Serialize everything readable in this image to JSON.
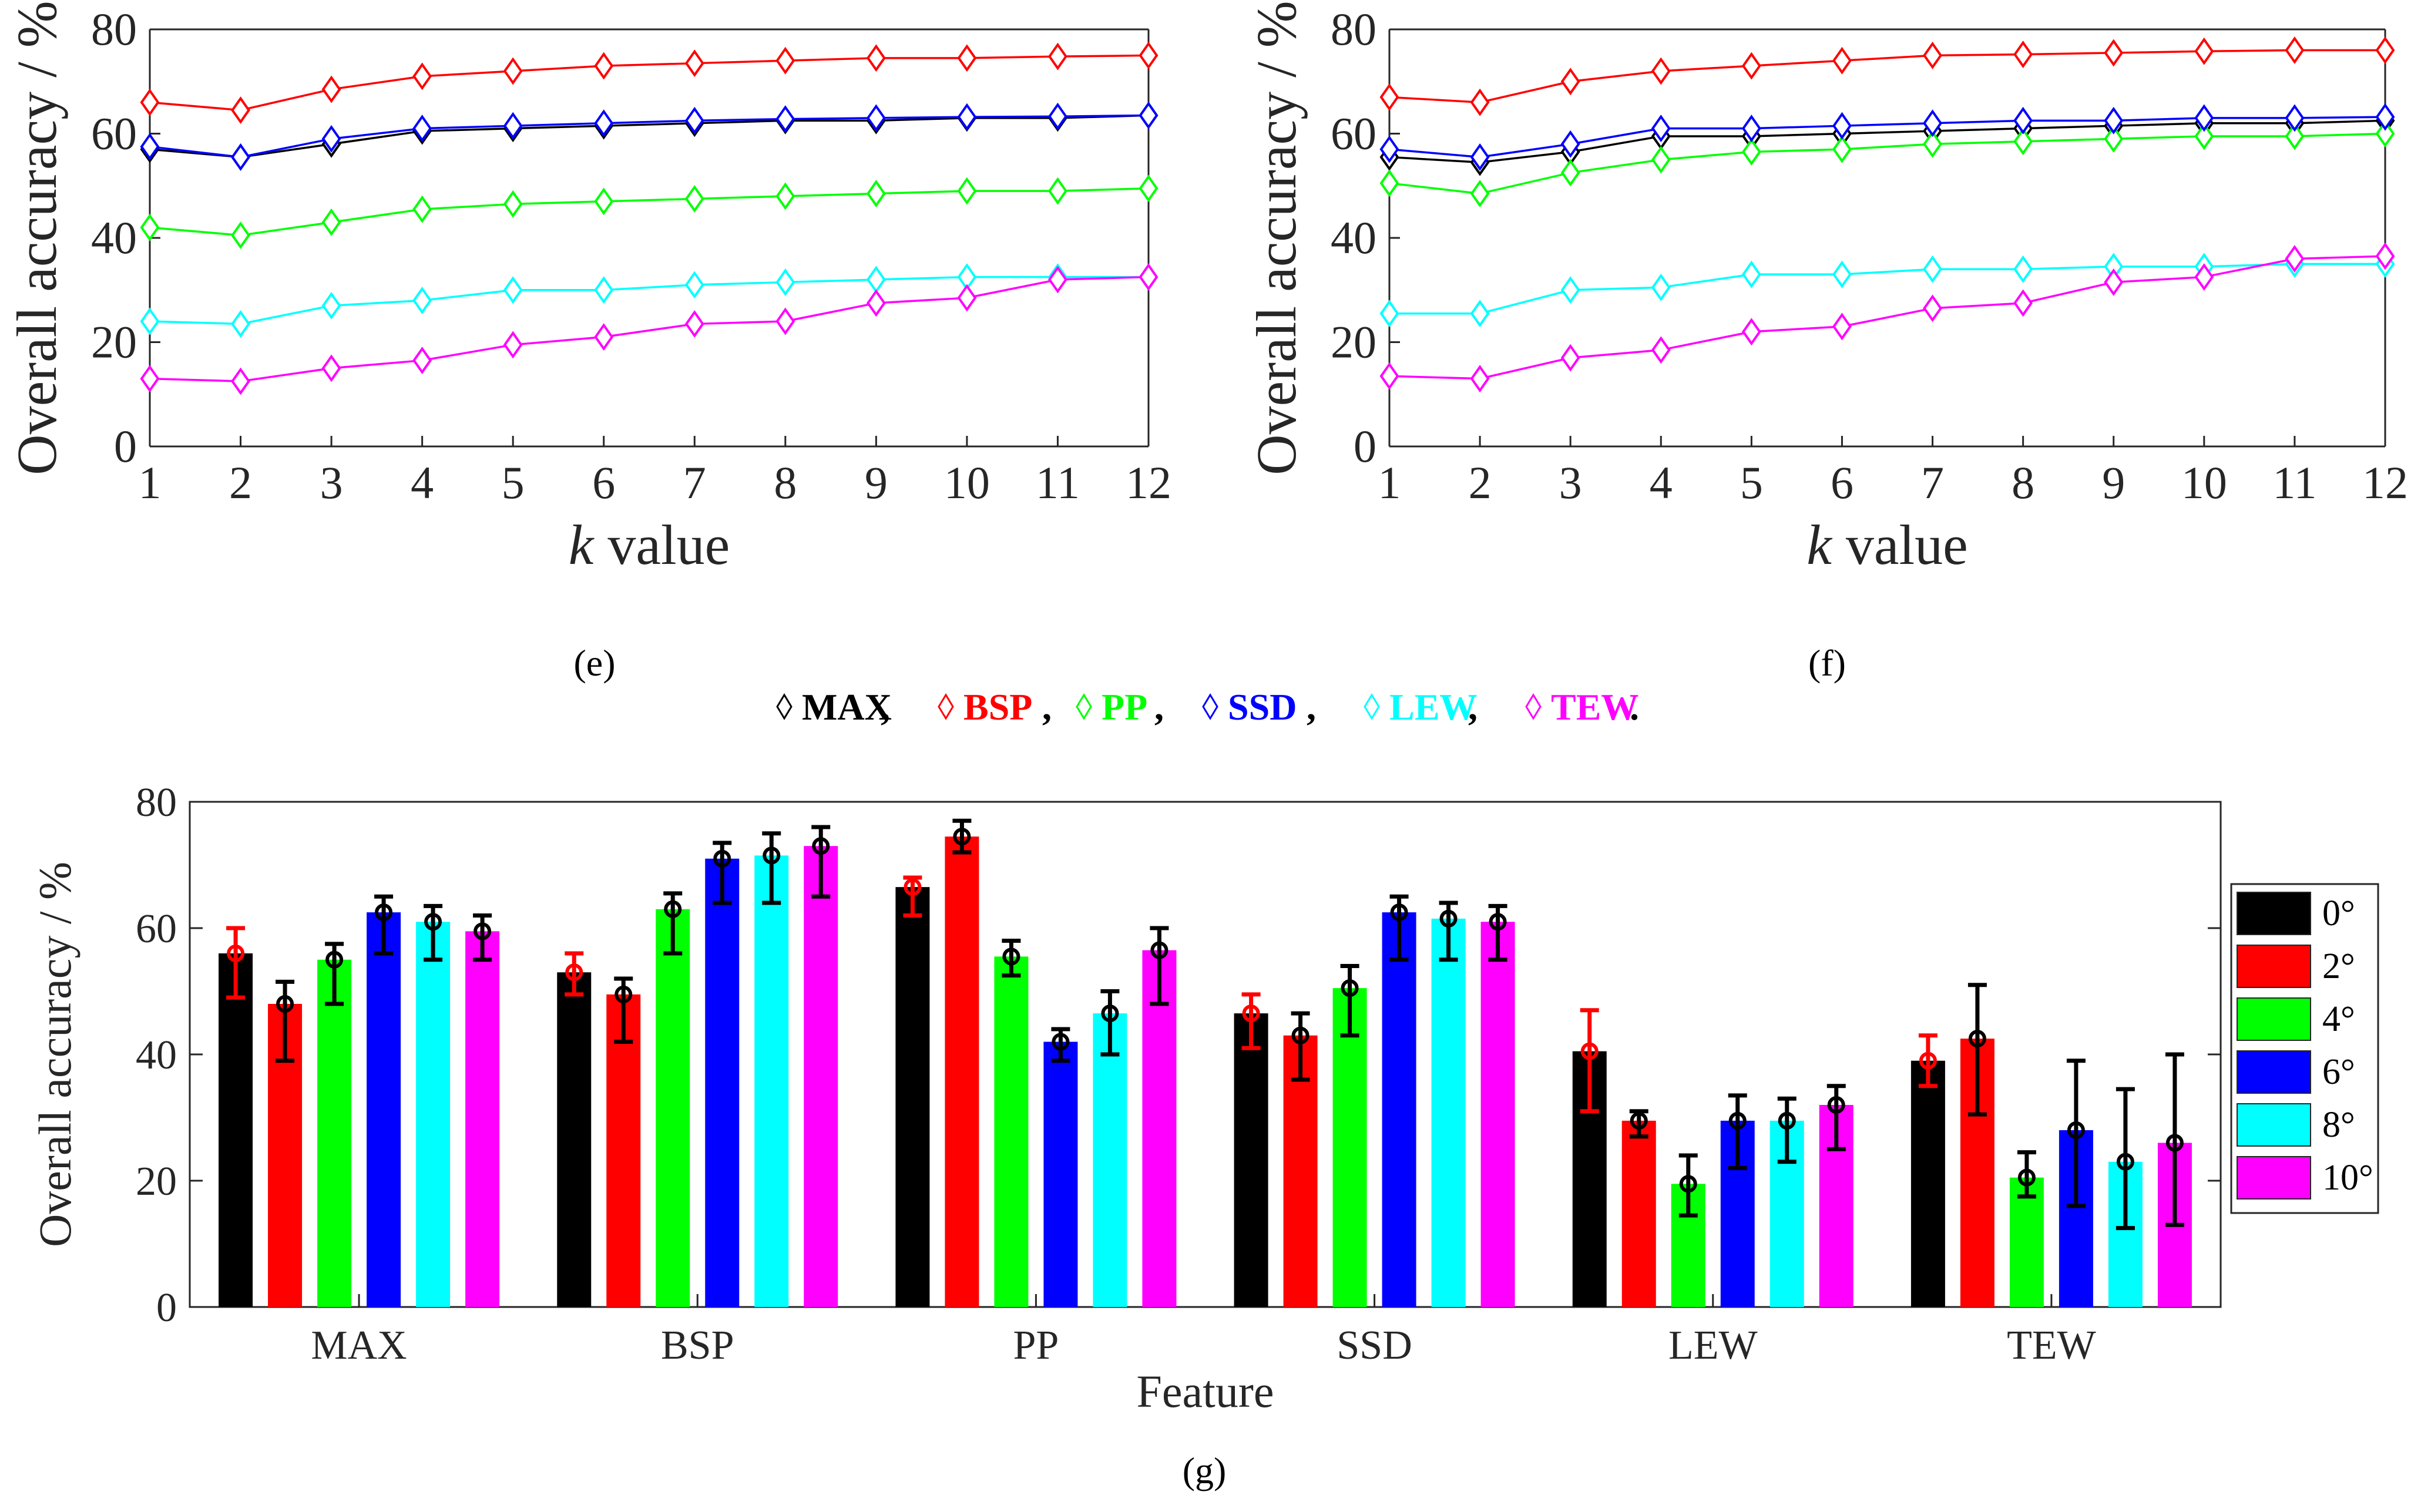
{
  "legend_items": [
    {
      "label": "MAX",
      "color": "#000000"
    },
    {
      "label": "BSP",
      "color": "#ff0000"
    },
    {
      "label": "PP",
      "color": "#00ff00"
    },
    {
      "label": "SSD",
      "color": "#0000ff"
    },
    {
      "label": "LEW",
      "color": "#00ffff"
    },
    {
      "label": "TEW",
      "color": "#ff00ff"
    }
  ],
  "chart_data": [
    {
      "panel": "e",
      "type": "line",
      "xlabel_italic": "k",
      "xlabel_rest": " value",
      "ylabel": "Overall accuracy / %",
      "xlim": [
        1,
        12
      ],
      "ylim": [
        0,
        80
      ],
      "x": [
        1,
        2,
        3,
        4,
        5,
        6,
        7,
        8,
        9,
        10,
        11,
        12
      ],
      "series": [
        {
          "name": "MAX",
          "values": [
            57,
            55.5,
            58,
            60.5,
            61,
            61.5,
            62,
            62.5,
            62.5,
            63,
            63,
            63.5
          ]
        },
        {
          "name": "BSP",
          "values": [
            66,
            64.5,
            68.5,
            71,
            72,
            73,
            73.5,
            74,
            74.5,
            74.5,
            74.8,
            75
          ]
        },
        {
          "name": "PP",
          "values": [
            42,
            40.5,
            43,
            45.5,
            46.5,
            47,
            47.5,
            48,
            48.5,
            49,
            49,
            49.5
          ]
        },
        {
          "name": "SSD",
          "values": [
            57.5,
            55.5,
            59,
            61,
            61.5,
            62,
            62.5,
            62.8,
            63,
            63.2,
            63.3,
            63.5
          ]
        },
        {
          "name": "LEW",
          "values": [
            24,
            23.5,
            27,
            28,
            30,
            30,
            31,
            31.5,
            32,
            32.5,
            32.5,
            32.5
          ]
        },
        {
          "name": "TEW",
          "values": [
            13,
            12.5,
            15,
            16.5,
            19.5,
            21,
            23.5,
            24,
            27.5,
            28.5,
            32,
            32.5
          ]
        }
      ]
    },
    {
      "panel": "f",
      "type": "line",
      "xlabel_italic": "k",
      "xlabel_rest": " value",
      "ylabel": "Overall accuracy / %",
      "xlim": [
        1,
        12
      ],
      "ylim": [
        0,
        80
      ],
      "x": [
        1,
        2,
        3,
        4,
        5,
        6,
        7,
        8,
        9,
        10,
        11,
        12
      ],
      "series": [
        {
          "name": "MAX",
          "values": [
            55.5,
            54.5,
            56.5,
            59.5,
            59.5,
            60,
            60.5,
            61,
            61.5,
            62,
            62,
            62.5
          ]
        },
        {
          "name": "BSP",
          "values": [
            67,
            66,
            70,
            72,
            73,
            74,
            75,
            75.2,
            75.5,
            75.8,
            76,
            76
          ]
        },
        {
          "name": "PP",
          "values": [
            50.5,
            48.5,
            52.5,
            55,
            56.5,
            57,
            58,
            58.5,
            59,
            59.5,
            59.5,
            60
          ]
        },
        {
          "name": "SSD",
          "values": [
            57,
            55.5,
            58,
            61,
            61,
            61.5,
            62,
            62.5,
            62.5,
            63,
            63,
            63.2
          ]
        },
        {
          "name": "LEW",
          "values": [
            25.5,
            25.5,
            30,
            30.5,
            33,
            33,
            34,
            34,
            34.5,
            34.5,
            35,
            35
          ]
        },
        {
          "name": "TEW",
          "values": [
            13.5,
            13,
            17,
            18.5,
            22,
            23,
            26.5,
            27.5,
            31.5,
            32.5,
            36,
            36.5
          ]
        }
      ]
    },
    {
      "panel": "g",
      "type": "bar",
      "xlabel": "Feature",
      "ylabel": "Overall accuracy / %",
      "ylim": [
        0,
        80
      ],
      "yticks": [
        0,
        20,
        40,
        60,
        80
      ],
      "categories": [
        "MAX",
        "BSP",
        "PP",
        "SSD",
        "LEW",
        "TEW"
      ],
      "series": [
        {
          "name": "0°",
          "color": "#000000",
          "values": [
            56,
            53,
            66.5,
            46.5,
            40.5,
            39
          ],
          "err_low": [
            49,
            49.5,
            62,
            41,
            31,
            35
          ],
          "err_high": [
            60,
            56,
            68,
            49.5,
            47,
            43
          ],
          "err_color": [
            "#ff0000",
            "#ff0000",
            "#ff0000",
            "#ff0000",
            "#ff0000",
            "#ff0000"
          ]
        },
        {
          "name": "2°",
          "color": "#ff0000",
          "values": [
            48,
            49.5,
            74.5,
            43,
            29.5,
            42.5
          ],
          "err_low": [
            39,
            42,
            72,
            36,
            27,
            30.5
          ],
          "err_high": [
            51.5,
            52,
            77,
            46.5,
            31,
            51
          ]
        },
        {
          "name": "4°",
          "color": "#00ff00",
          "values": [
            55,
            63,
            55.5,
            50.5,
            19.5,
            20.5
          ],
          "err_low": [
            48,
            56,
            52.5,
            43,
            14.5,
            17.5
          ],
          "err_high": [
            57.5,
            65.5,
            58,
            54,
            24,
            24.5
          ]
        },
        {
          "name": "6°",
          "color": "#0000ff",
          "values": [
            62.5,
            71,
            42,
            62.5,
            29.5,
            28
          ],
          "err_low": [
            56,
            64,
            39,
            55,
            22,
            16
          ],
          "err_high": [
            65,
            73.5,
            44,
            65,
            33.5,
            39
          ]
        },
        {
          "name": "8°",
          "color": "#00ffff",
          "values": [
            61,
            71.5,
            46.5,
            61.5,
            29.5,
            23
          ],
          "err_low": [
            55,
            64,
            40,
            55,
            23,
            12.5
          ],
          "err_high": [
            63.5,
            75,
            50,
            64,
            33,
            34.5
          ]
        },
        {
          "name": "10°",
          "color": "#ff00ff",
          "values": [
            59.5,
            73,
            56.5,
            61,
            32,
            26
          ],
          "err_low": [
            55,
            65,
            48,
            55,
            25,
            13
          ],
          "err_high": [
            62,
            76,
            60,
            63.5,
            35,
            40
          ]
        }
      ]
    }
  ],
  "panel_labels": {
    "e": "(e)",
    "f": "(f)",
    "g": "(g)"
  }
}
